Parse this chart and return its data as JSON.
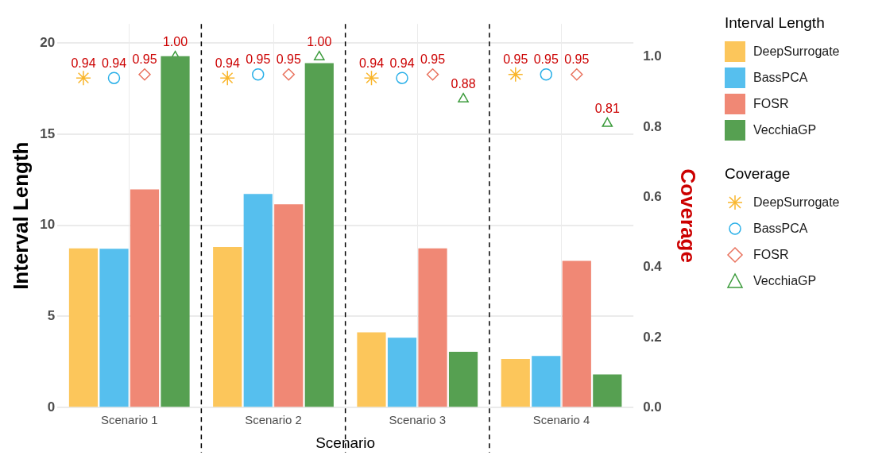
{
  "chart_data": {
    "type": "bar",
    "xlabel": "Scenario",
    "ylabel": "Interval Length",
    "y2label": "Coverage",
    "legend_title": [
      "Interval Length",
      "Coverage"
    ],
    "categories": [
      "Scenario 1",
      "Scenario 2",
      "Scenario 3",
      "Scenario 4"
    ],
    "series": [
      {
        "name": "DeepSurrogate",
        "color": "#fcc65b",
        "values": [
          8.74,
          8.81,
          4.13,
          2.67
        ]
      },
      {
        "name": "BassPCA",
        "color": "#56bfee",
        "values": [
          8.71,
          11.72,
          3.83,
          2.83
        ]
      },
      {
        "name": "FOSR",
        "color": "#f08875",
        "values": [
          11.97,
          11.15,
          8.74,
          8.05
        ]
      },
      {
        "name": "VecchiaGP",
        "color": "#56a051",
        "values": [
          19.28,
          18.9,
          3.06,
          1.82
        ]
      },
      {
        "name": "DeepSurrogate",
        "type": "scatter",
        "axis": "y2",
        "marker": "cross",
        "color": "#f9b52a",
        "x": [
          "Scenario 1",
          "Scenario 2",
          "Scenario 3",
          "Scenario 4"
        ],
        "values": [
          0.94,
          0.94,
          0.94,
          0.95
        ],
        "value_labels": [
          "0.94",
          "0.94",
          "0.94",
          "0.95"
        ]
      },
      {
        "name": "BassPCA",
        "type": "scatter",
        "axis": "y2",
        "marker": "circle",
        "color": "#2bb0e8",
        "x": [
          "Scenario 1",
          "Scenario 2",
          "Scenario 3",
          "Scenario 4"
        ],
        "values": [
          0.94,
          0.95,
          0.94,
          0.95
        ],
        "value_labels": [
          "0.94",
          "0.95",
          "0.94",
          "0.95"
        ]
      },
      {
        "name": "FOSR",
        "type": "scatter",
        "axis": "y2",
        "marker": "diamond",
        "color": "#e9735f",
        "x": [
          "Scenario 1",
          "Scenario 2",
          "Scenario 3",
          "Scenario 4"
        ],
        "values": [
          0.95,
          0.95,
          0.95,
          0.95
        ],
        "value_labels": [
          "0.95",
          "0.95",
          "0.95",
          "0.95"
        ]
      },
      {
        "name": "VecchiaGP",
        "type": "scatter",
        "axis": "y2",
        "marker": "triangle",
        "color": "#3a9a3a",
        "x": [
          "Scenario 1",
          "Scenario 2",
          "Scenario 3",
          "Scenario 4"
        ],
        "values": [
          1,
          1,
          0.88,
          0.81
        ],
        "value_labels": [
          "1.00",
          "1.00",
          "0.88",
          "0.81"
        ]
      }
    ],
    "ylim": [
      0,
      21.05
    ],
    "yticks": [
      0,
      5,
      10,
      15,
      20
    ],
    "y2lim": [
      0,
      1.094
    ],
    "y2ticks": [
      {
        "value": 0,
        "label": "0.0"
      },
      0.2,
      0.4,
      0.6,
      0.8,
      {
        "value": 1,
        "label": "1.0"
      }
    ],
    "grid": true,
    "legend": "right"
  }
}
